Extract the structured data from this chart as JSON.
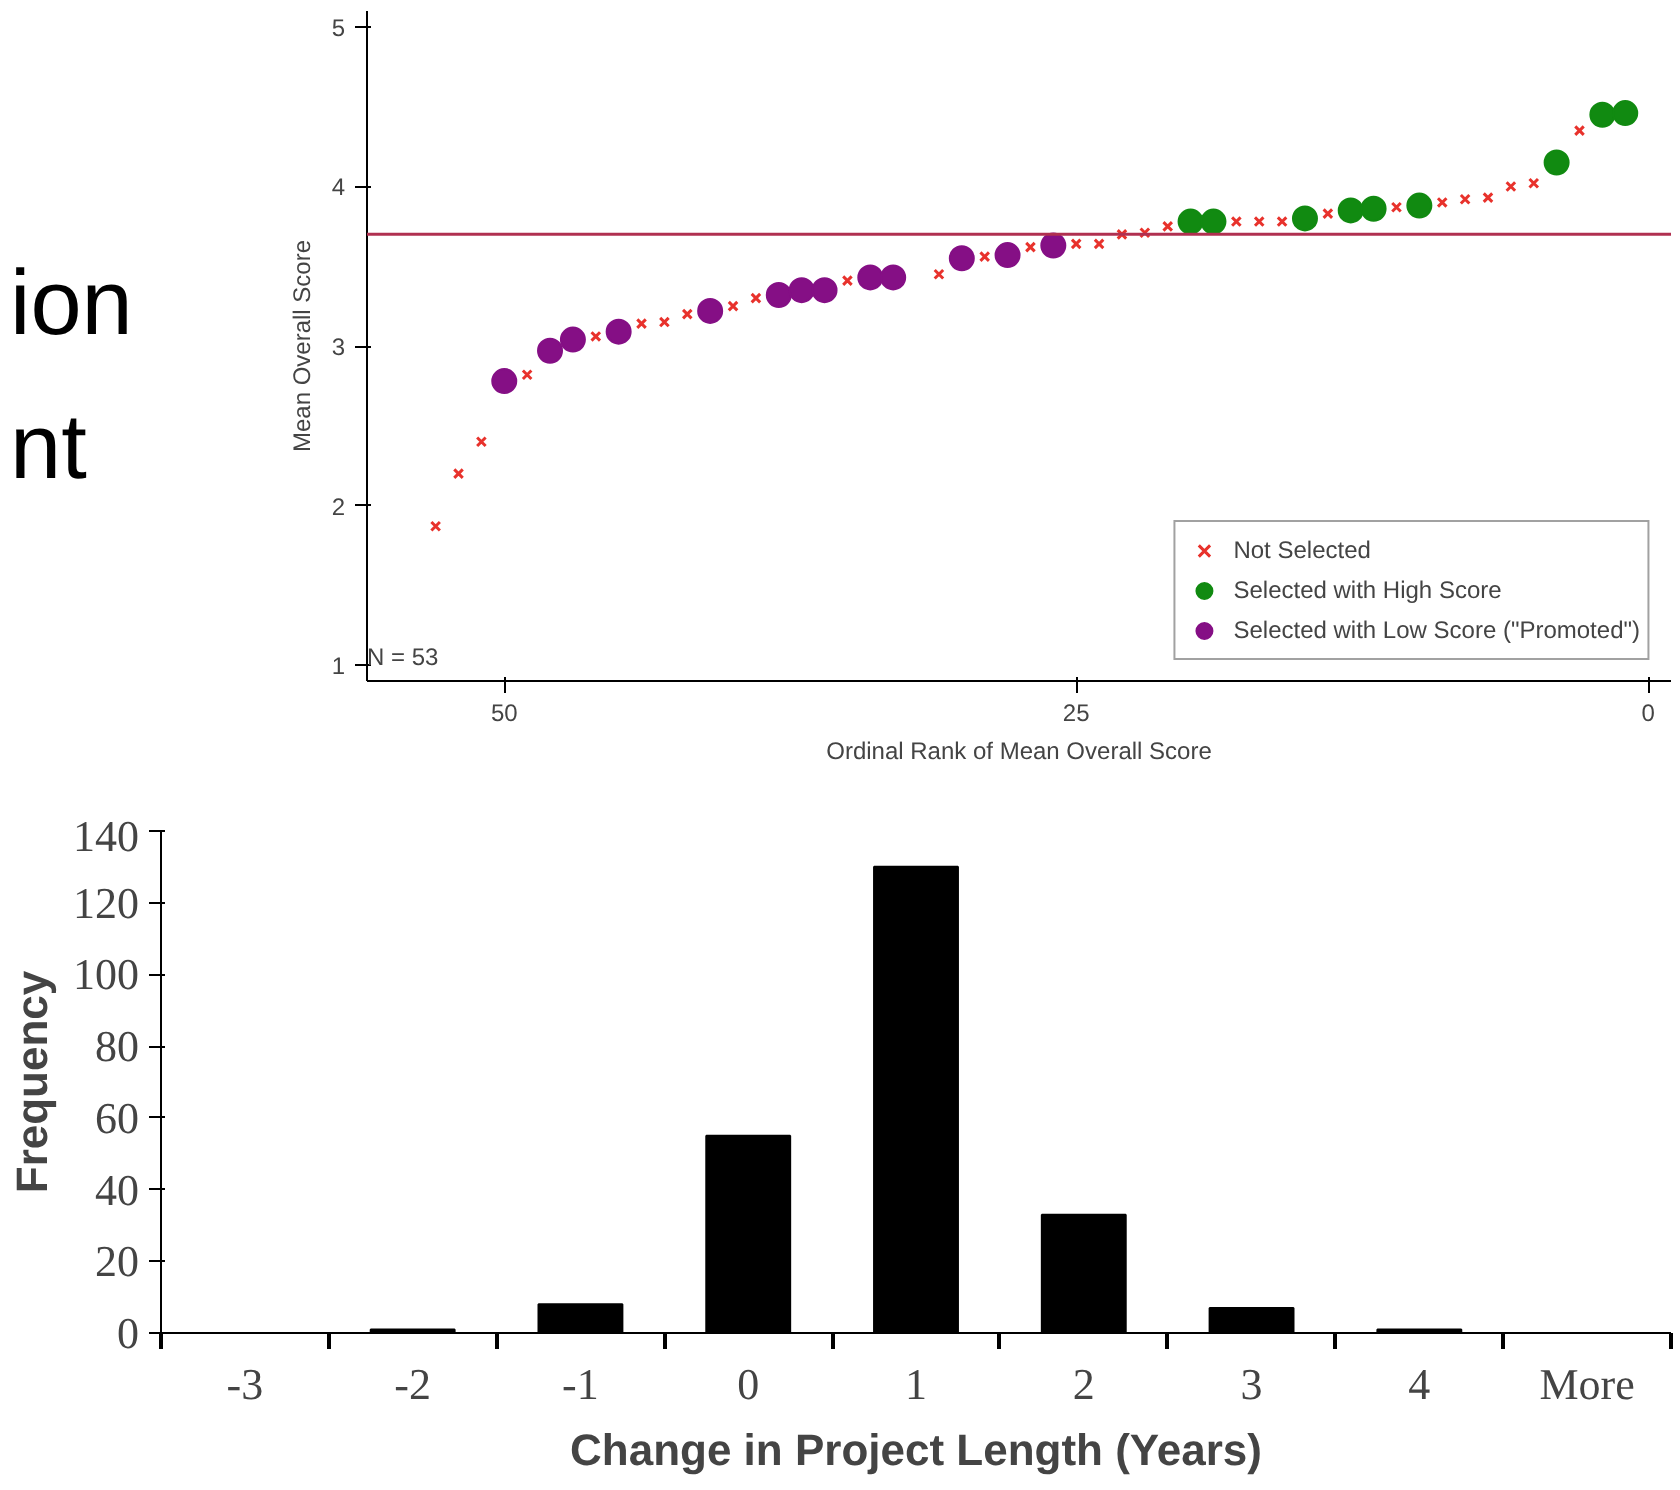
{
  "chart_data": [
    {
      "type": "other",
      "annotations": [
        "ion",
        "nt"
      ]
    },
    {
      "type": "scatter",
      "xlabel": "Ordinal Rank of Mean Overall Score",
      "ylabel": "Mean Overall Score",
      "xlim": [
        56,
        -1
      ],
      "ylim": [
        0.9,
        5.1
      ],
      "xticks": [
        50,
        25,
        0
      ],
      "yticks": [
        1,
        2,
        3,
        4,
        5
      ],
      "grid": false,
      "legend": "bottom right",
      "annotations": [
        "N = 53"
      ],
      "ref_lines": [
        {
          "axis": "y",
          "value": 3.7,
          "color": "#b03050"
        }
      ],
      "series": [
        {
          "name": "Not Selected",
          "color": "#e8322c",
          "marker": "cross",
          "x": [
            53,
            52,
            51,
            49,
            46,
            44,
            43,
            42,
            40,
            39,
            35,
            31,
            29,
            27,
            25,
            24,
            23,
            22,
            21,
            18,
            17,
            16,
            14,
            11,
            9,
            8,
            7,
            6,
            5,
            3
          ],
          "values": [
            1.87,
            2.2,
            2.4,
            2.82,
            3.06,
            3.14,
            3.15,
            3.2,
            3.25,
            3.3,
            3.41,
            3.45,
            3.56,
            3.62,
            3.64,
            3.64,
            3.7,
            3.71,
            3.75,
            3.78,
            3.78,
            3.78,
            3.83,
            3.87,
            3.9,
            3.92,
            3.93,
            4.0,
            4.02,
            4.35
          ]
        },
        {
          "name": "Selected with High Score",
          "color": "#118a11",
          "marker": "circle",
          "x": [
            20,
            19,
            15,
            13,
            12,
            10,
            4,
            2,
            1
          ],
          "values": [
            3.78,
            3.78,
            3.8,
            3.85,
            3.86,
            3.88,
            4.15,
            4.45,
            4.46
          ]
        },
        {
          "name": "Selected with Low Score (\"Promoted\")",
          "color": "#850f85",
          "marker": "circle",
          "x": [
            50,
            48,
            47,
            45,
            41,
            38,
            37,
            36,
            34,
            33,
            30,
            28,
            26
          ],
          "values": [
            2.78,
            2.97,
            3.04,
            3.09,
            3.22,
            3.32,
            3.35,
            3.35,
            3.43,
            3.43,
            3.55,
            3.57,
            3.63
          ]
        }
      ]
    },
    {
      "type": "bar",
      "xlabel": "Change in Project Length (Years)",
      "ylabel": "Frequency",
      "categories": [
        "-3",
        "-2",
        "-1",
        "0",
        "1",
        "2",
        "3",
        "4",
        "More"
      ],
      "values": [
        0,
        1,
        8,
        55,
        130,
        33,
        7,
        1,
        0
      ],
      "color": "#000000",
      "ylim": [
        0,
        140
      ],
      "yticks": [
        0,
        20,
        40,
        60,
        80,
        100,
        120,
        140
      ],
      "grid": false
    }
  ]
}
